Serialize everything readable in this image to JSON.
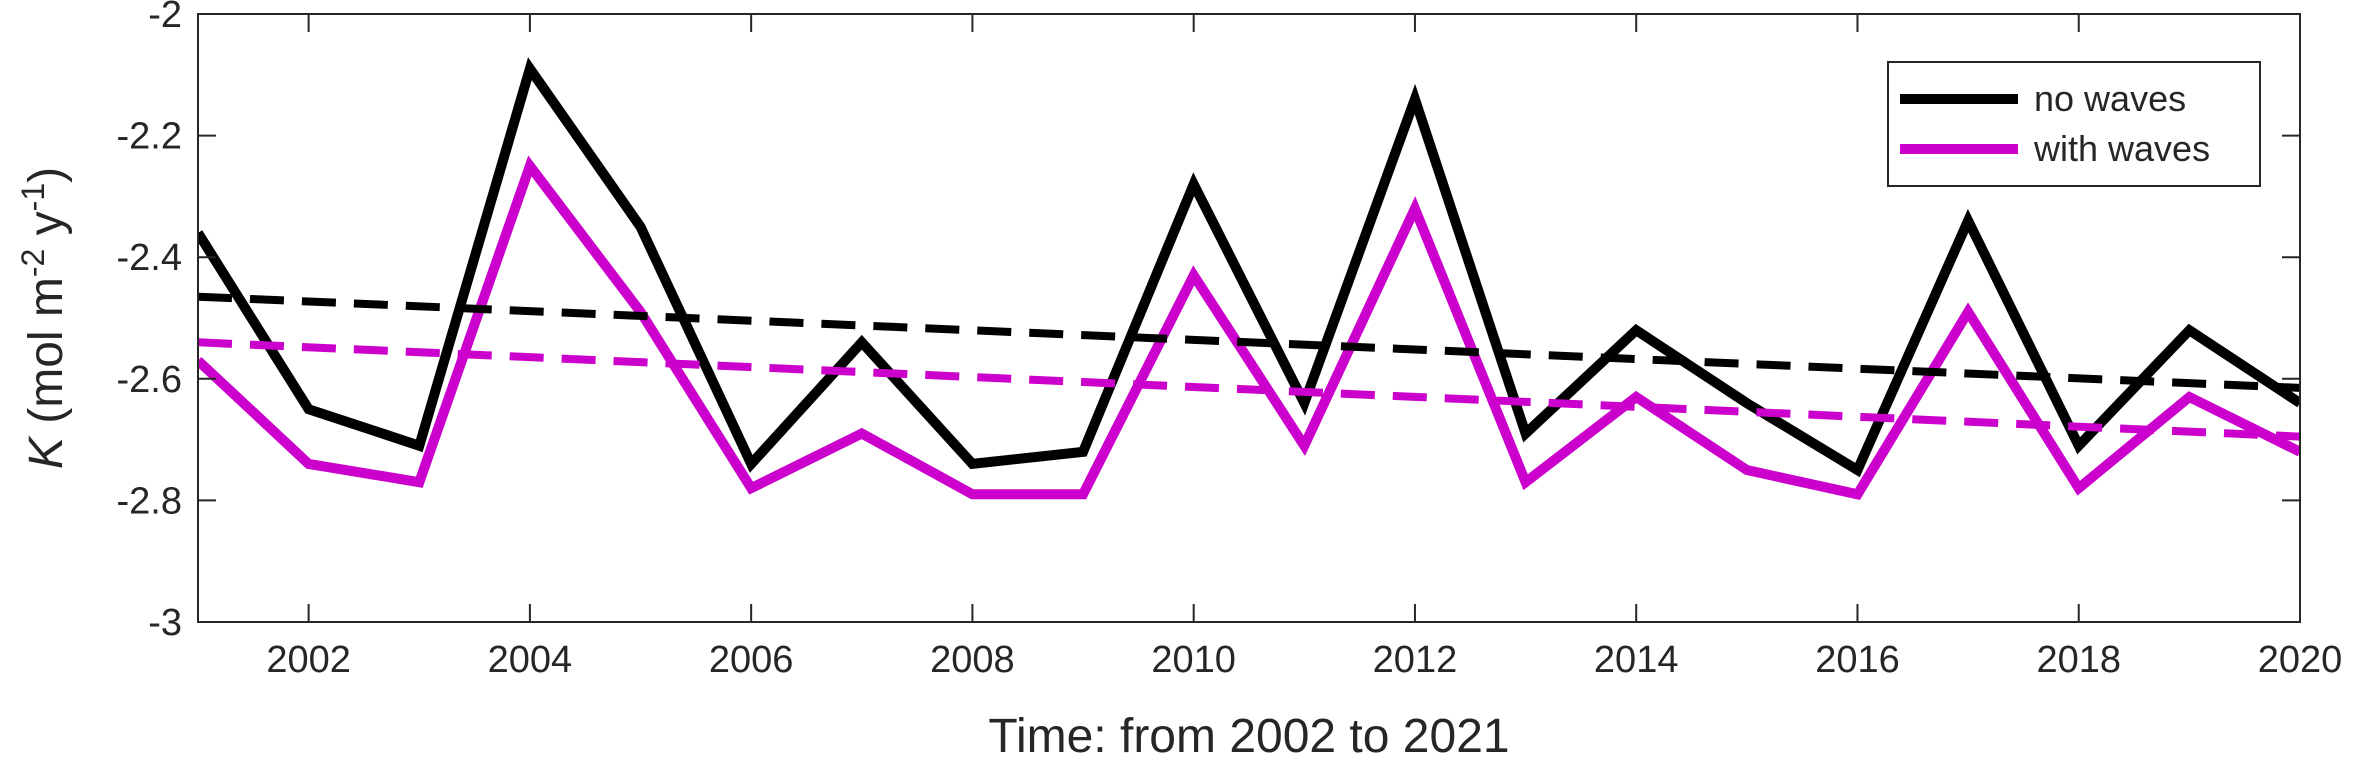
{
  "chart_data": {
    "type": "line",
    "title": "",
    "xlabel": "Time: from 2002 to 2021",
    "ylabel": {
      "symbol": "K",
      "text_open": " (mol m",
      "sup1": "-2",
      "text_mid": " y",
      "sup2": "-1",
      "text_close": ")"
    },
    "xlim": [
      2001,
      2020
    ],
    "ylim": [
      -3,
      -2
    ],
    "xticks": [
      2002,
      2004,
      2006,
      2008,
      2010,
      2012,
      2014,
      2016,
      2018,
      2020
    ],
    "yticks": [
      -3,
      -2.8,
      -2.6,
      -2.4,
      -2.2,
      -2
    ],
    "x": [
      2001,
      2002,
      2003,
      2004,
      2005,
      2006,
      2007,
      2008,
      2009,
      2010,
      2011,
      2012,
      2013,
      2014,
      2015,
      2016,
      2017,
      2018,
      2019,
      2020
    ],
    "series": [
      {
        "name": "no waves",
        "color": "#000000",
        "style": "solid",
        "values": [
          -2.36,
          -2.65,
          -2.71,
          -2.09,
          -2.35,
          -2.74,
          -2.54,
          -2.74,
          -2.72,
          -2.28,
          -2.64,
          -2.14,
          -2.69,
          -2.52,
          -2.64,
          -2.75,
          -2.34,
          -2.71,
          -2.52,
          -2.64
        ]
      },
      {
        "name": "with waves",
        "color": "#cc00cc",
        "style": "solid",
        "values": [
          -2.57,
          -2.74,
          -2.77,
          -2.25,
          -2.49,
          -2.78,
          -2.69,
          -2.79,
          -2.79,
          -2.43,
          -2.71,
          -2.32,
          -2.77,
          -2.63,
          -2.75,
          -2.79,
          -2.49,
          -2.78,
          -2.63,
          -2.72
        ]
      },
      {
        "legend": false,
        "color": "#000000",
        "style": "dashed",
        "x": [
          2001,
          2020
        ],
        "values": [
          -2.465,
          -2.615
        ]
      },
      {
        "legend": false,
        "color": "#cc00cc",
        "style": "dashed",
        "x": [
          2001,
          2020
        ],
        "values": [
          -2.54,
          -2.695
        ]
      }
    ],
    "legend_position": "top-right",
    "grid": false
  }
}
